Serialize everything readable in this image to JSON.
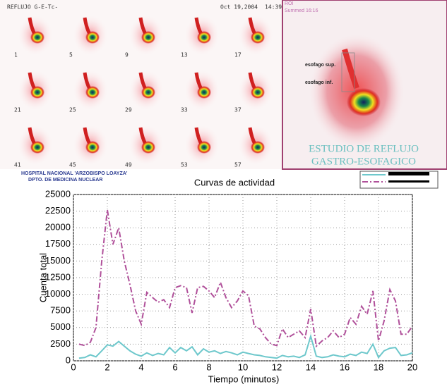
{
  "header": {
    "study": "REFLUJO G-E-Tc-",
    "date": "Oct 19,2004",
    "time": "14:39",
    "frames": [
      "1",
      "5",
      "9",
      "13",
      "17",
      "21",
      "25",
      "29",
      "33",
      "37",
      "41",
      "45",
      "49",
      "53",
      "57"
    ],
    "roi": "ROI",
    "summed": "Summed 16:16",
    "label_sup": "esofago sup.",
    "label_inf": "esofago inf.",
    "study_title_1": "ESTUDIO DE REFLUJO",
    "study_title_2": "GASTRO-ESOFAGICO",
    "hospital": "HOSPITAL NACIONAL 'ARZOBISPO LOAYZA'",
    "department": "DPTO. DE MEDICINA NUCLEAR"
  },
  "chart_data": {
    "type": "line",
    "title": "Curvas de actividad",
    "x_label": "Tiempo (minutos)",
    "y_label": "Cuenta total",
    "x": [
      0.33,
      0.67,
      1.0,
      1.33,
      1.67,
      2.0,
      2.33,
      2.67,
      3.0,
      3.33,
      3.67,
      4.0,
      4.33,
      4.67,
      5.0,
      5.33,
      5.67,
      6.0,
      6.33,
      6.67,
      7.0,
      7.33,
      7.67,
      8.0,
      8.33,
      8.67,
      9.0,
      9.33,
      9.67,
      10.0,
      10.33,
      10.67,
      11.0,
      11.33,
      11.67,
      12.0,
      12.33,
      12.67,
      13.0,
      13.33,
      13.67,
      14.0,
      14.33,
      14.67,
      15.0,
      15.33,
      15.67,
      16.0,
      16.33,
      16.67,
      17.0,
      17.33,
      17.67,
      18.0,
      18.33,
      18.67,
      19.0,
      19.33,
      19.67,
      20.0
    ],
    "series": [
      {
        "color": "#6ec8cc",
        "line_style": "solid",
        "values": [
          400,
          500,
          900,
          600,
          1500,
          2400,
          2200,
          2900,
          2200,
          1500,
          1000,
          700,
          1200,
          800,
          1100,
          900,
          2000,
          1200,
          2000,
          1500,
          2100,
          900,
          1800,
          1300,
          1500,
          1100,
          1400,
          1200,
          900,
          1300,
          1100,
          900,
          800,
          600,
          500,
          400,
          800,
          600,
          700,
          500,
          900,
          3700,
          700,
          500,
          600,
          900,
          700,
          600,
          1000,
          800,
          1300,
          1100,
          2500,
          500,
          1500,
          1900,
          2000,
          800,
          900,
          1200
        ]
      },
      {
        "color": "#b0509a",
        "line_style": "dashdot",
        "values": [
          2500,
          2300,
          2800,
          5000,
          15000,
          22700,
          17500,
          20000,
          15000,
          11500,
          7500,
          5500,
          10300,
          9500,
          8800,
          9200,
          8000,
          11000,
          11300,
          11000,
          7200,
          11000,
          11200,
          10500,
          9500,
          11800,
          9500,
          8000,
          9000,
          10500,
          9800,
          5200,
          4800,
          3500,
          2500,
          2300,
          4800,
          3500,
          4000,
          4500,
          3500,
          7800,
          2200,
          3000,
          3500,
          4500,
          3500,
          4000,
          6500,
          5500,
          8200,
          7000,
          10500,
          3000,
          6000,
          10700,
          9000,
          4000,
          4000,
          5200
        ]
      }
    ],
    "xlim": [
      0,
      20
    ],
    "xticks": [
      0,
      2,
      4,
      6,
      8,
      10,
      12,
      14,
      16,
      18,
      20
    ],
    "ylim": [
      0,
      25000
    ],
    "yticks": [
      0,
      2500,
      5000,
      7500,
      10000,
      12500,
      15000,
      17500,
      20000,
      22500,
      25000
    ],
    "grid": true
  }
}
